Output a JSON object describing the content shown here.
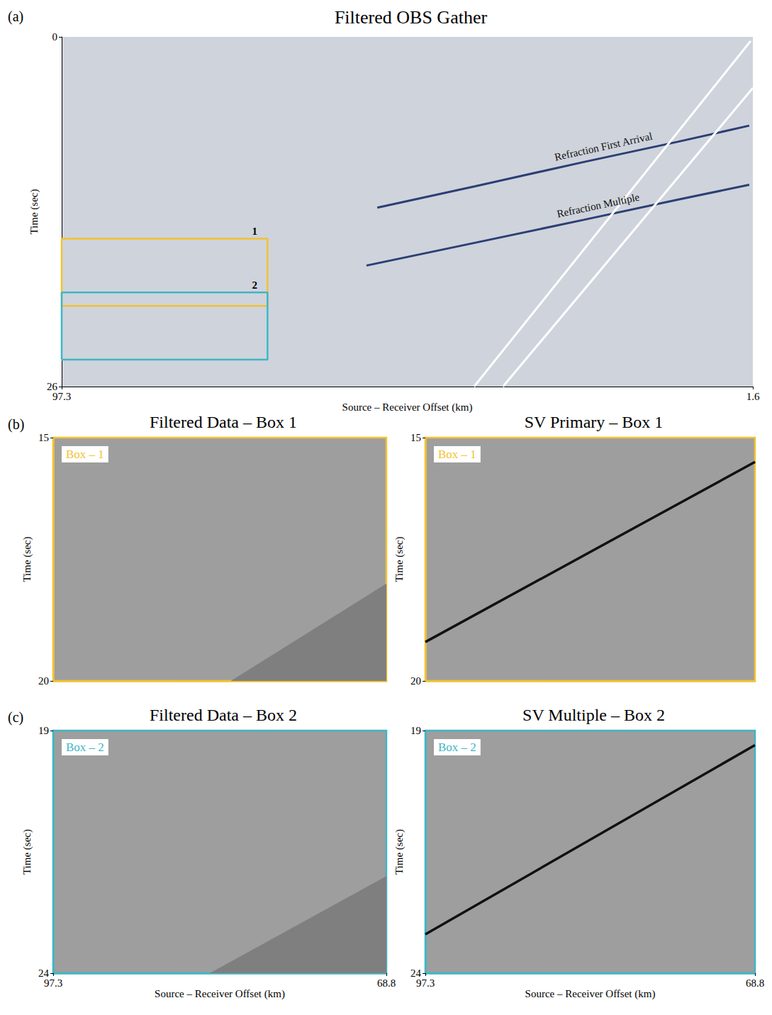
{
  "chart_data": [
    {
      "type": "line",
      "panel_label": "(a)",
      "title": "Filtered OBS Gather",
      "x_label": "Source – Receiver Offset (km)",
      "y_label": "Time (sec)",
      "xlim": [
        97.3,
        1.6
      ],
      "ylim": [
        26,
        0
      ],
      "xticks": [
        97.3,
        1.6
      ],
      "yticks": [
        0,
        26
      ],
      "series": [
        {
          "label": "Refraction First Arrival",
          "color": "#2b3f73",
          "x": [
            53.6,
            40,
            25,
            12,
            2.1
          ],
          "values": [
            12.7,
            11.1,
            9.3,
            7.8,
            6.6
          ]
        },
        {
          "label": "Refraction Multiple",
          "color": "#2b3f73",
          "x": [
            55.1,
            40,
            25,
            12,
            2.1
          ],
          "values": [
            17.0,
            15.3,
            13.6,
            12.1,
            11.0
          ]
        },
        {
          "color": "#ffffff",
          "x": [
            40.2,
            1.9
          ],
          "values": [
            26,
            0.3
          ]
        },
        {
          "color": "#ffffff",
          "x": [
            36.2,
            1.6
          ],
          "values": [
            26,
            3.8
          ]
        }
      ],
      "boxes": [
        {
          "label": "1",
          "color": "#f2c230",
          "xlim": [
            97.3,
            68.8
          ],
          "ylim": [
            20,
            15
          ]
        },
        {
          "label": "2",
          "color": "#3fb6c6",
          "xlim": [
            97.3,
            68.8
          ],
          "ylim": [
            24,
            19
          ]
        }
      ]
    },
    {
      "type": "line",
      "panel_label": "(b)",
      "title": "Filtered Data – Box 1",
      "box_label": "Box – 1",
      "color": "#f2c230",
      "y_label": "Time (sec)",
      "xlim": [
        97.3,
        68.8
      ],
      "ylim": [
        20,
        15
      ],
      "yticks": [
        15,
        20
      ],
      "tick_labels": "y",
      "series": [
        {
          "type": "area",
          "color": "#7f7f7f",
          "x": [
            82.1,
            68.8
          ],
          "values": [
            20,
            18.0
          ]
        }
      ]
    },
    {
      "type": "line",
      "title": "SV Primary – Box 1",
      "box_label": "Box – 1",
      "color": "#f2c230",
      "y_label": "Time (sec)",
      "xlim": [
        97.3,
        68.8
      ],
      "ylim": [
        20,
        15
      ],
      "yticks": [
        15,
        20
      ],
      "tick_labels": "y",
      "series": [
        {
          "color": "#111111",
          "x": [
            97.3,
            68.8
          ],
          "values": [
            19.2,
            15.5
          ]
        }
      ]
    },
    {
      "type": "line",
      "panel_label": "(c)",
      "title": "Filtered Data – Box 2",
      "box_label": "Box – 2",
      "color": "#3fb6c6",
      "x_label": "Source – Receiver Offset (km)",
      "y_label": "Time (sec)",
      "xlim": [
        97.3,
        68.8
      ],
      "ylim": [
        24,
        19
      ],
      "xticks": [
        97.3,
        68.8
      ],
      "yticks": [
        19,
        24
      ],
      "series": [
        {
          "type": "area",
          "color": "#7f7f7f",
          "x": [
            83.9,
            68.8
          ],
          "values": [
            24,
            22.0
          ]
        }
      ]
    },
    {
      "type": "line",
      "title": "SV Multiple – Box 2",
      "box_label": "Box – 2",
      "color": "#3fb6c6",
      "x_label": "Source – Receiver Offset (km)",
      "y_label": "Time (sec)",
      "xlim": [
        97.3,
        68.8
      ],
      "ylim": [
        24,
        19
      ],
      "xticks": [
        97.3,
        68.8
      ],
      "yticks": [
        19,
        24
      ],
      "series": [
        {
          "color": "#111111",
          "x": [
            97.3,
            68.8
          ],
          "values": [
            23.2,
            19.3
          ]
        }
      ]
    }
  ]
}
